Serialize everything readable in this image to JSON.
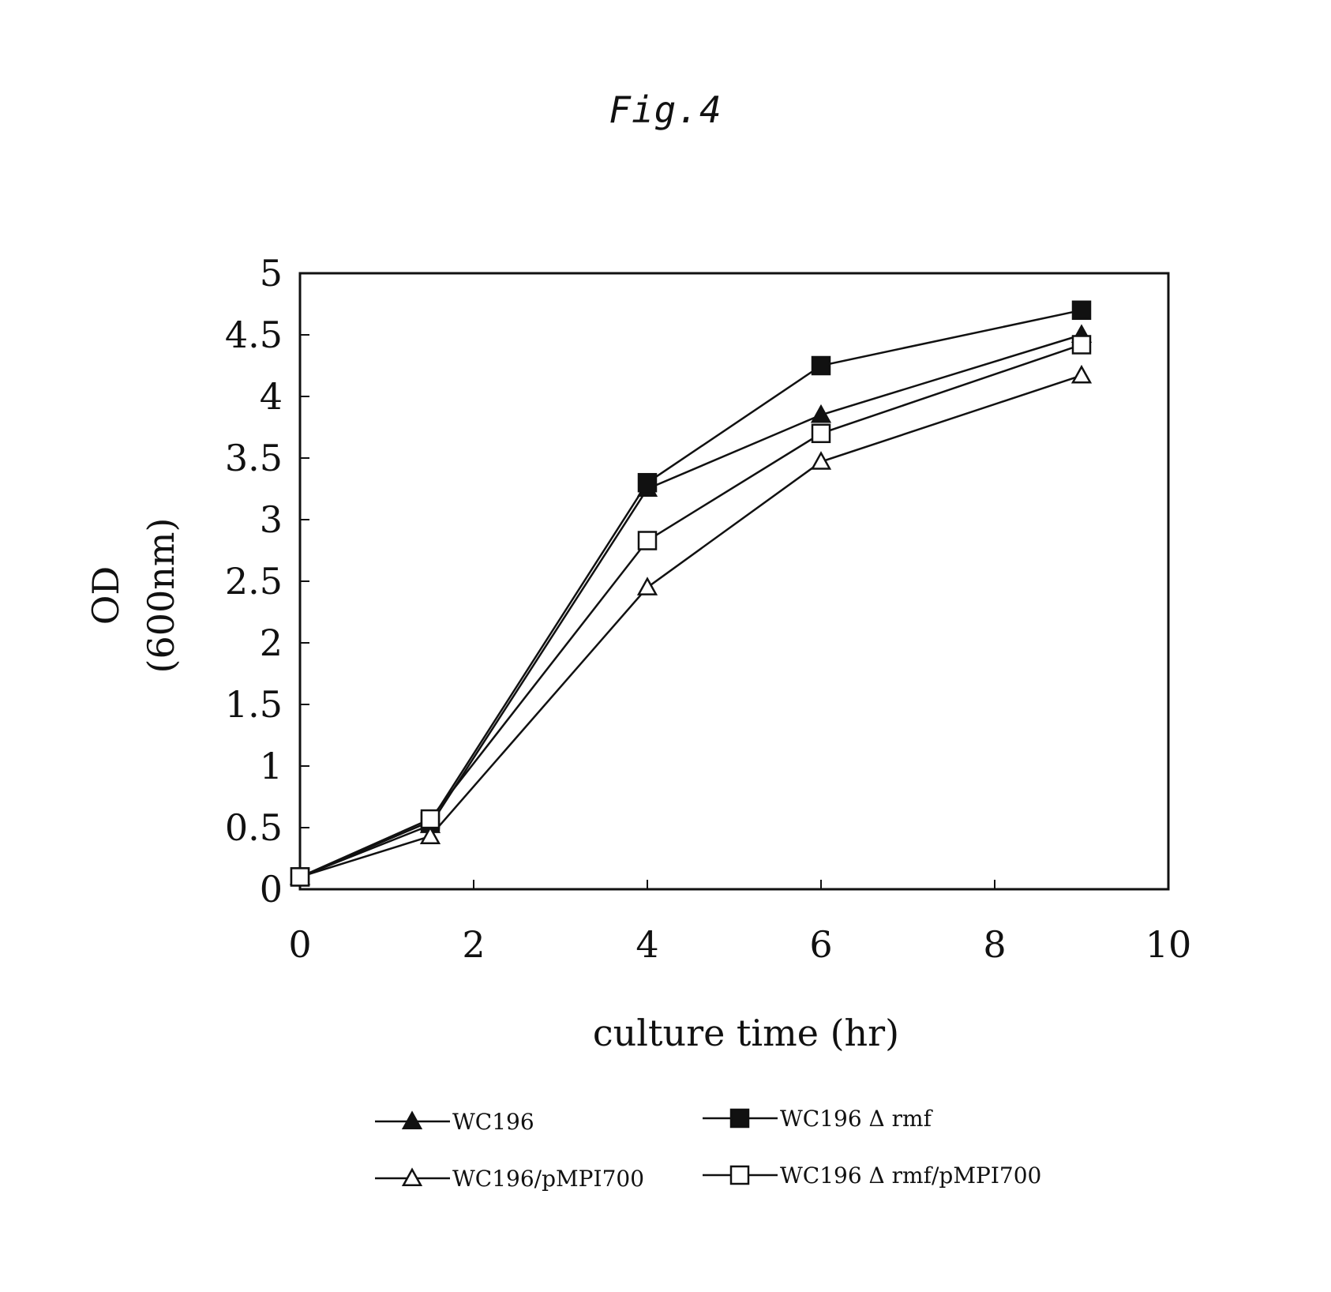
{
  "figure": {
    "title": "Fig.4"
  },
  "chart_data": {
    "type": "line",
    "title": "",
    "xlabel": "culture time (hr)",
    "ylabel": "OD",
    "ylabel_unit": "(600nm)",
    "xlim": [
      0,
      10
    ],
    "ylim": [
      0,
      5
    ],
    "x_ticks": [
      "0",
      "2",
      "4",
      "6",
      "8",
      "10"
    ],
    "y_ticks": [
      "0",
      "0.5",
      "1",
      "1.5",
      "2",
      "2.5",
      "3",
      "3.5",
      "4",
      "4.5",
      "5"
    ],
    "grid": false,
    "legend_position": "bottom",
    "series": [
      {
        "name": "WC196",
        "marker": "filled-triangle",
        "x": [
          0,
          1.5,
          4,
          6,
          9
        ],
        "y": [
          0.1,
          0.52,
          3.25,
          3.85,
          4.5
        ]
      },
      {
        "name": "WC196 Δ rmf",
        "marker": "filled-square",
        "x": [
          0,
          1.5,
          4,
          6,
          9
        ],
        "y": [
          0.1,
          0.55,
          3.3,
          4.25,
          4.7
        ]
      },
      {
        "name": "WC196/pMPI700",
        "marker": "open-triangle",
        "x": [
          0,
          1.5,
          4,
          6,
          9
        ],
        "y": [
          0.1,
          0.43,
          2.45,
          3.47,
          4.17
        ]
      },
      {
        "name": "WC196 Δ rmf/pMPI700",
        "marker": "open-square",
        "x": [
          0,
          1.5,
          4,
          6,
          9
        ],
        "y": [
          0.1,
          0.57,
          2.83,
          3.7,
          4.42
        ]
      }
    ]
  },
  "colors": {
    "ink": "#111111",
    "background": "#ffffff"
  }
}
